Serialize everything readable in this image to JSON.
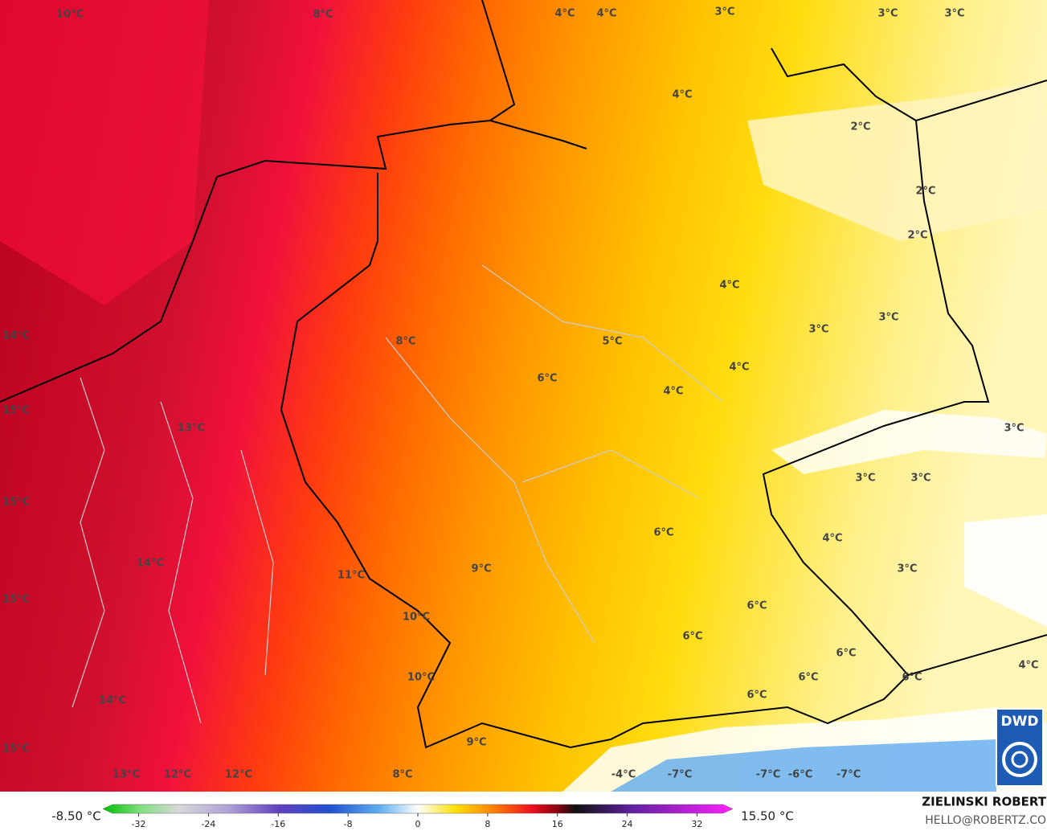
{
  "map": {
    "labels": [
      "10°C",
      "8°C",
      "4°C",
      "4°C",
      "3°C",
      "3°C",
      "3°C",
      "4°C",
      "2°C",
      "2°C",
      "2°C",
      "4°C",
      "14°C",
      "8°C",
      "3°C",
      "3°C",
      "5°C",
      "4°C",
      "6°C",
      "4°C",
      "15°C",
      "13°C",
      "3°C",
      "3°C",
      "3°C",
      "15°C",
      "6°C",
      "4°C",
      "14°C",
      "9°C",
      "11°C",
      "3°C",
      "15°C",
      "6°C",
      "10°C",
      "6°C",
      "6°C",
      "10°C",
      "6°C",
      "6°C",
      "4°C",
      "14°C",
      "6°C",
      "9°C",
      "15°C",
      "13°C",
      "12°C",
      "12°C",
      "8°C",
      "-4°C",
      "-7°C",
      "-7°C",
      "-6°C",
      "-7°C"
    ],
    "min_label": "-8.50 °C",
    "max_label": "15.50 °C",
    "author": "ZIELINSKI ROBERT",
    "email": "HELLO@ROBERTZ.CO",
    "logo": "DWD"
  },
  "colorbar": {
    "range": [
      -35,
      35
    ],
    "ticks": [
      -32,
      -24,
      -16,
      -8,
      0,
      8,
      16,
      24,
      32
    ]
  }
}
